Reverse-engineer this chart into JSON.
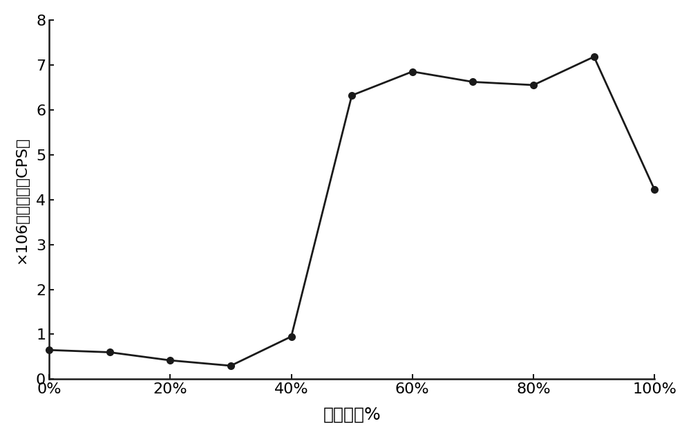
{
  "x_values": [
    0,
    10,
    20,
    30,
    40,
    50,
    60,
    70,
    80,
    90,
    100
  ],
  "y_values": [
    0.65,
    0.6,
    0.42,
    0.3,
    0.95,
    6.32,
    6.85,
    6.62,
    6.55,
    7.18,
    4.22
  ],
  "x_ticks": [
    0,
    20,
    40,
    60,
    80,
    100
  ],
  "x_tick_labels": [
    "0%",
    "20%",
    "40%",
    "60%",
    "80%",
    "100%"
  ],
  "y_ticks": [
    0,
    1,
    2,
    3,
    4,
    5,
    6,
    7,
    8
  ],
  "y_tick_labels": [
    "0",
    "1",
    "2",
    "3",
    "4",
    "5",
    "6",
    "7",
    "8"
  ],
  "xlabel": "水的含量%",
  "ylabel": "×106荧光强度（CPS）",
  "line_color": "#1a1a1a",
  "marker": "o",
  "marker_size": 7,
  "line_width": 2.0,
  "background_color": "#ffffff",
  "xlim": [
    0,
    100
  ],
  "ylim": [
    0,
    8
  ],
  "xlabel_fontsize": 18,
  "ylabel_fontsize": 16,
  "tick_fontsize": 16
}
